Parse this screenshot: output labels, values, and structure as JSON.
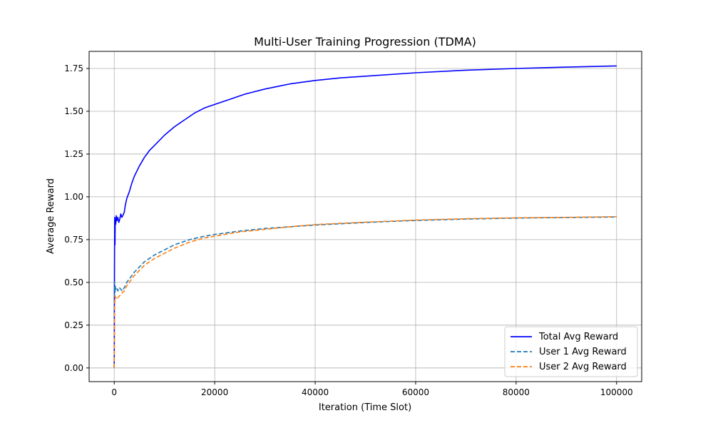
{
  "chart_data": {
    "type": "line",
    "title": "Multi-User Training Progression (TDMA)",
    "xlabel": "Iteration (Time Slot)",
    "ylabel": "Average Reward",
    "xlim": [
      -5000,
      105000
    ],
    "ylim": [
      -0.08,
      1.85
    ],
    "xticks": [
      0,
      20000,
      40000,
      60000,
      80000,
      100000
    ],
    "yticks": [
      0.0,
      0.25,
      0.5,
      0.75,
      1.0,
      1.25,
      1.5,
      1.75
    ],
    "xtick_labels": [
      "0",
      "20000",
      "40000",
      "60000",
      "80000",
      "100000"
    ],
    "ytick_labels": [
      "0.00",
      "0.25",
      "0.50",
      "0.75",
      "1.00",
      "1.25",
      "1.50",
      "1.75"
    ],
    "grid": true,
    "legend_position": "lower-right",
    "series": [
      {
        "name": "Total Avg Reward",
        "color": "#0000ff",
        "style": "solid",
        "x": [
          0,
          50,
          100,
          150,
          200,
          300,
          400,
          500,
          700,
          900,
          1100,
          1300,
          1500,
          1700,
          2000,
          2200,
          2500,
          3000,
          3500,
          4000,
          5000,
          6000,
          7000,
          8000,
          10000,
          12000,
          14000,
          16000,
          18000,
          20000,
          23000,
          26000,
          30000,
          35000,
          40000,
          45000,
          50000,
          60000,
          70000,
          80000,
          90000,
          100000
        ],
        "y": [
          0.0,
          0.62,
          0.88,
          0.72,
          0.87,
          0.84,
          0.89,
          0.86,
          0.88,
          0.85,
          0.87,
          0.9,
          0.88,
          0.89,
          0.91,
          0.95,
          0.99,
          1.03,
          1.08,
          1.12,
          1.18,
          1.23,
          1.27,
          1.3,
          1.36,
          1.41,
          1.45,
          1.49,
          1.52,
          1.54,
          1.57,
          1.6,
          1.63,
          1.66,
          1.68,
          1.695,
          1.705,
          1.725,
          1.74,
          1.75,
          1.758,
          1.765
        ]
      },
      {
        "name": "User 1 Avg Reward",
        "color": "#1f77b4",
        "style": "dashed",
        "x": [
          0,
          50,
          100,
          150,
          200,
          300,
          500,
          700,
          1000,
          1300,
          1600,
          2000,
          2500,
          3000,
          4000,
          5000,
          6000,
          8000,
          10000,
          12000,
          15000,
          18000,
          20000,
          25000,
          30000,
          35000,
          40000,
          50000,
          60000,
          70000,
          80000,
          90000,
          100000
        ],
        "y": [
          0.0,
          0.5,
          0.46,
          0.44,
          0.48,
          0.46,
          0.47,
          0.45,
          0.47,
          0.46,
          0.45,
          0.47,
          0.5,
          0.52,
          0.56,
          0.59,
          0.62,
          0.66,
          0.69,
          0.72,
          0.75,
          0.77,
          0.78,
          0.8,
          0.815,
          0.825,
          0.835,
          0.85,
          0.862,
          0.87,
          0.876,
          0.879,
          0.882
        ]
      },
      {
        "name": "User 2 Avg Reward",
        "color": "#ff7f0e",
        "style": "dashed",
        "x": [
          0,
          50,
          100,
          150,
          200,
          300,
          500,
          700,
          1000,
          1300,
          1600,
          2000,
          2500,
          3000,
          4000,
          5000,
          6000,
          8000,
          10000,
          12000,
          15000,
          18000,
          20000,
          25000,
          30000,
          35000,
          40000,
          50000,
          60000,
          70000,
          80000,
          90000,
          100000
        ],
        "y": [
          0.0,
          0.3,
          0.37,
          0.4,
          0.42,
          0.41,
          0.4,
          0.41,
          0.42,
          0.43,
          0.44,
          0.45,
          0.48,
          0.5,
          0.54,
          0.57,
          0.6,
          0.64,
          0.67,
          0.7,
          0.735,
          0.76,
          0.77,
          0.795,
          0.81,
          0.825,
          0.838,
          0.852,
          0.864,
          0.872,
          0.877,
          0.88,
          0.884
        ]
      }
    ]
  }
}
